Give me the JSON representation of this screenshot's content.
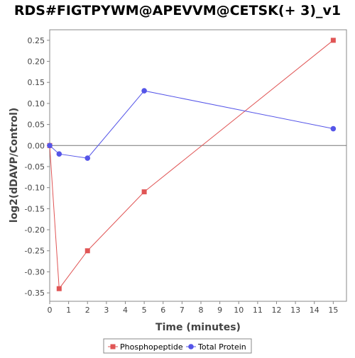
{
  "chart_data": {
    "type": "line",
    "title": "RDS#FIGTPYWM@APEVVM@CETSK(+ 3)_v1",
    "xlabel": "Time (minutes)",
    "ylabel": "log2(dDAVP/Control)",
    "xlim": [
      0,
      15.7
    ],
    "ylim": [
      -0.37,
      0.275
    ],
    "xticks": [
      0,
      1,
      2,
      3,
      4,
      5,
      6,
      7,
      8,
      9,
      10,
      11,
      12,
      13,
      14,
      15
    ],
    "yticks": [
      -0.35,
      -0.3,
      -0.25,
      -0.2,
      -0.15,
      -0.1,
      -0.05,
      0.0,
      0.05,
      0.1,
      0.15,
      0.2,
      0.25
    ],
    "ytick_labels": [
      "-0.35",
      "-0.30",
      "-0.25",
      "-0.20",
      "-0.15",
      "-0.10",
      "-0.05",
      "0.00",
      "0.05",
      "0.10",
      "0.15",
      "0.20",
      "0.25"
    ],
    "zero_line": true,
    "grid": false,
    "legend_position": "bottom",
    "series": [
      {
        "name": "Phosphopeptide",
        "color": "#e05555",
        "marker": "square",
        "x": [
          0,
          0.5,
          2,
          5,
          15
        ],
        "y": [
          0.0,
          -0.34,
          -0.25,
          -0.11,
          0.25
        ]
      },
      {
        "name": "Total Protein",
        "color": "#5555e8",
        "marker": "circle",
        "x": [
          0,
          0.5,
          2,
          5,
          15
        ],
        "y": [
          0.0,
          -0.02,
          -0.03,
          0.13,
          0.04
        ]
      }
    ]
  }
}
